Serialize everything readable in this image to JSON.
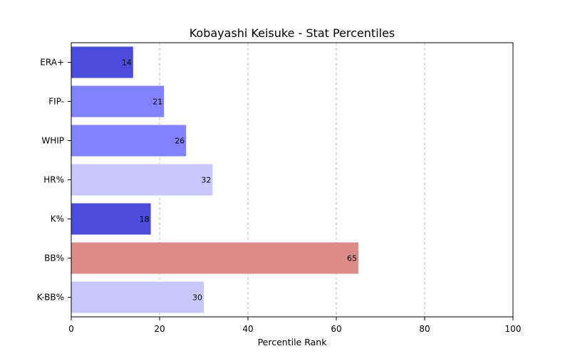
{
  "chart_data": {
    "type": "bar",
    "orientation": "horizontal",
    "title": "Kobayashi Keisuke - Stat Percentiles",
    "xlabel": "Percentile Rank",
    "ylabel": "",
    "xlim": [
      0,
      100
    ],
    "xticks": [
      0,
      20,
      40,
      60,
      80,
      100
    ],
    "grid": "x-dashed",
    "categories": [
      "ERA+",
      "FIP-",
      "WHIP",
      "HR%",
      "K%",
      "BB%",
      "K-BB%"
    ],
    "values": [
      14,
      21,
      26,
      32,
      18,
      65,
      30
    ],
    "colors": [
      "#4b4bdc",
      "#8282ff",
      "#8282ff",
      "#c8c8fc",
      "#4b4bdc",
      "#dc8a8a",
      "#c8c8fc"
    ]
  }
}
